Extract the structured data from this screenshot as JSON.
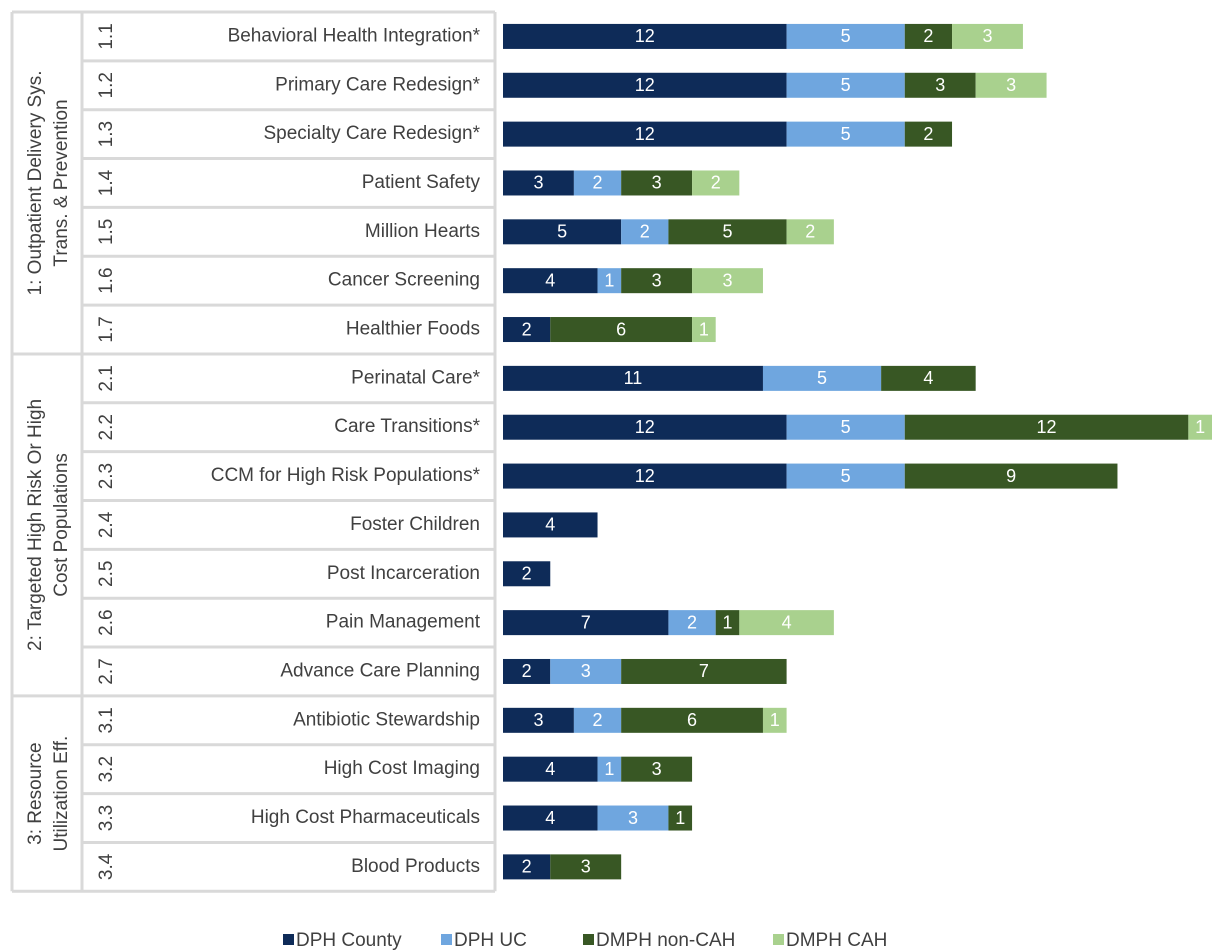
{
  "chart_data": {
    "type": "bar",
    "orientation": "horizontal",
    "stacked": true,
    "groups": [
      {
        "label_lines": [
          "1: Outpatient Delivery Sys.",
          "Trans. & Prevention"
        ],
        "start": 0,
        "end": 6
      },
      {
        "label_lines": [
          "2: Targeted High Risk Or High",
          "Cost Populations"
        ],
        "start": 7,
        "end": 13
      },
      {
        "label_lines": [
          "3: Resource",
          "Utilization Eff."
        ],
        "start": 14,
        "end": 17
      }
    ],
    "codes": [
      "1.1",
      "1.2",
      "1.3",
      "1.4",
      "1.5",
      "1.6",
      "1.7",
      "2.1",
      "2.2",
      "2.3",
      "2.4",
      "2.5",
      "2.6",
      "2.7",
      "3.1",
      "3.2",
      "3.3",
      "3.4"
    ],
    "categories": [
      "Behavioral Health Integration*",
      "Primary Care Redesign*",
      "Specialty Care Redesign*",
      "Patient Safety",
      "Million Hearts",
      "Cancer Screening",
      "Healthier Foods",
      "Perinatal Care*",
      "Care Transitions*",
      "CCM for High Risk Populations*",
      "Foster Children",
      "Post Incarceration",
      "Pain Management",
      "Advance Care Planning",
      "Antibiotic Stewardship",
      "High Cost Imaging",
      "High Cost Pharmaceuticals",
      "Blood Products"
    ],
    "series": [
      {
        "name": "DPH County",
        "color": "#0e2b58",
        "values": [
          12,
          12,
          12,
          3,
          5,
          4,
          2,
          11,
          12,
          12,
          4,
          2,
          7,
          2,
          3,
          4,
          4,
          2
        ]
      },
      {
        "name": "DPH UC",
        "color": "#6fa6df",
        "values": [
          5,
          5,
          5,
          2,
          2,
          1,
          null,
          5,
          5,
          5,
          null,
          null,
          2,
          3,
          2,
          1,
          3,
          null
        ]
      },
      {
        "name": "DMPH non-CAH",
        "color": "#385724",
        "values": [
          2,
          3,
          2,
          3,
          5,
          3,
          6,
          4,
          12,
          9,
          null,
          null,
          1,
          7,
          6,
          3,
          1,
          3
        ]
      },
      {
        "name": "DMPH CAH",
        "color": "#a9d18e",
        "values": [
          3,
          3,
          null,
          2,
          2,
          3,
          1,
          null,
          1,
          null,
          null,
          null,
          4,
          null,
          1,
          null,
          null,
          null
        ]
      }
    ],
    "legend": "bottom"
  }
}
